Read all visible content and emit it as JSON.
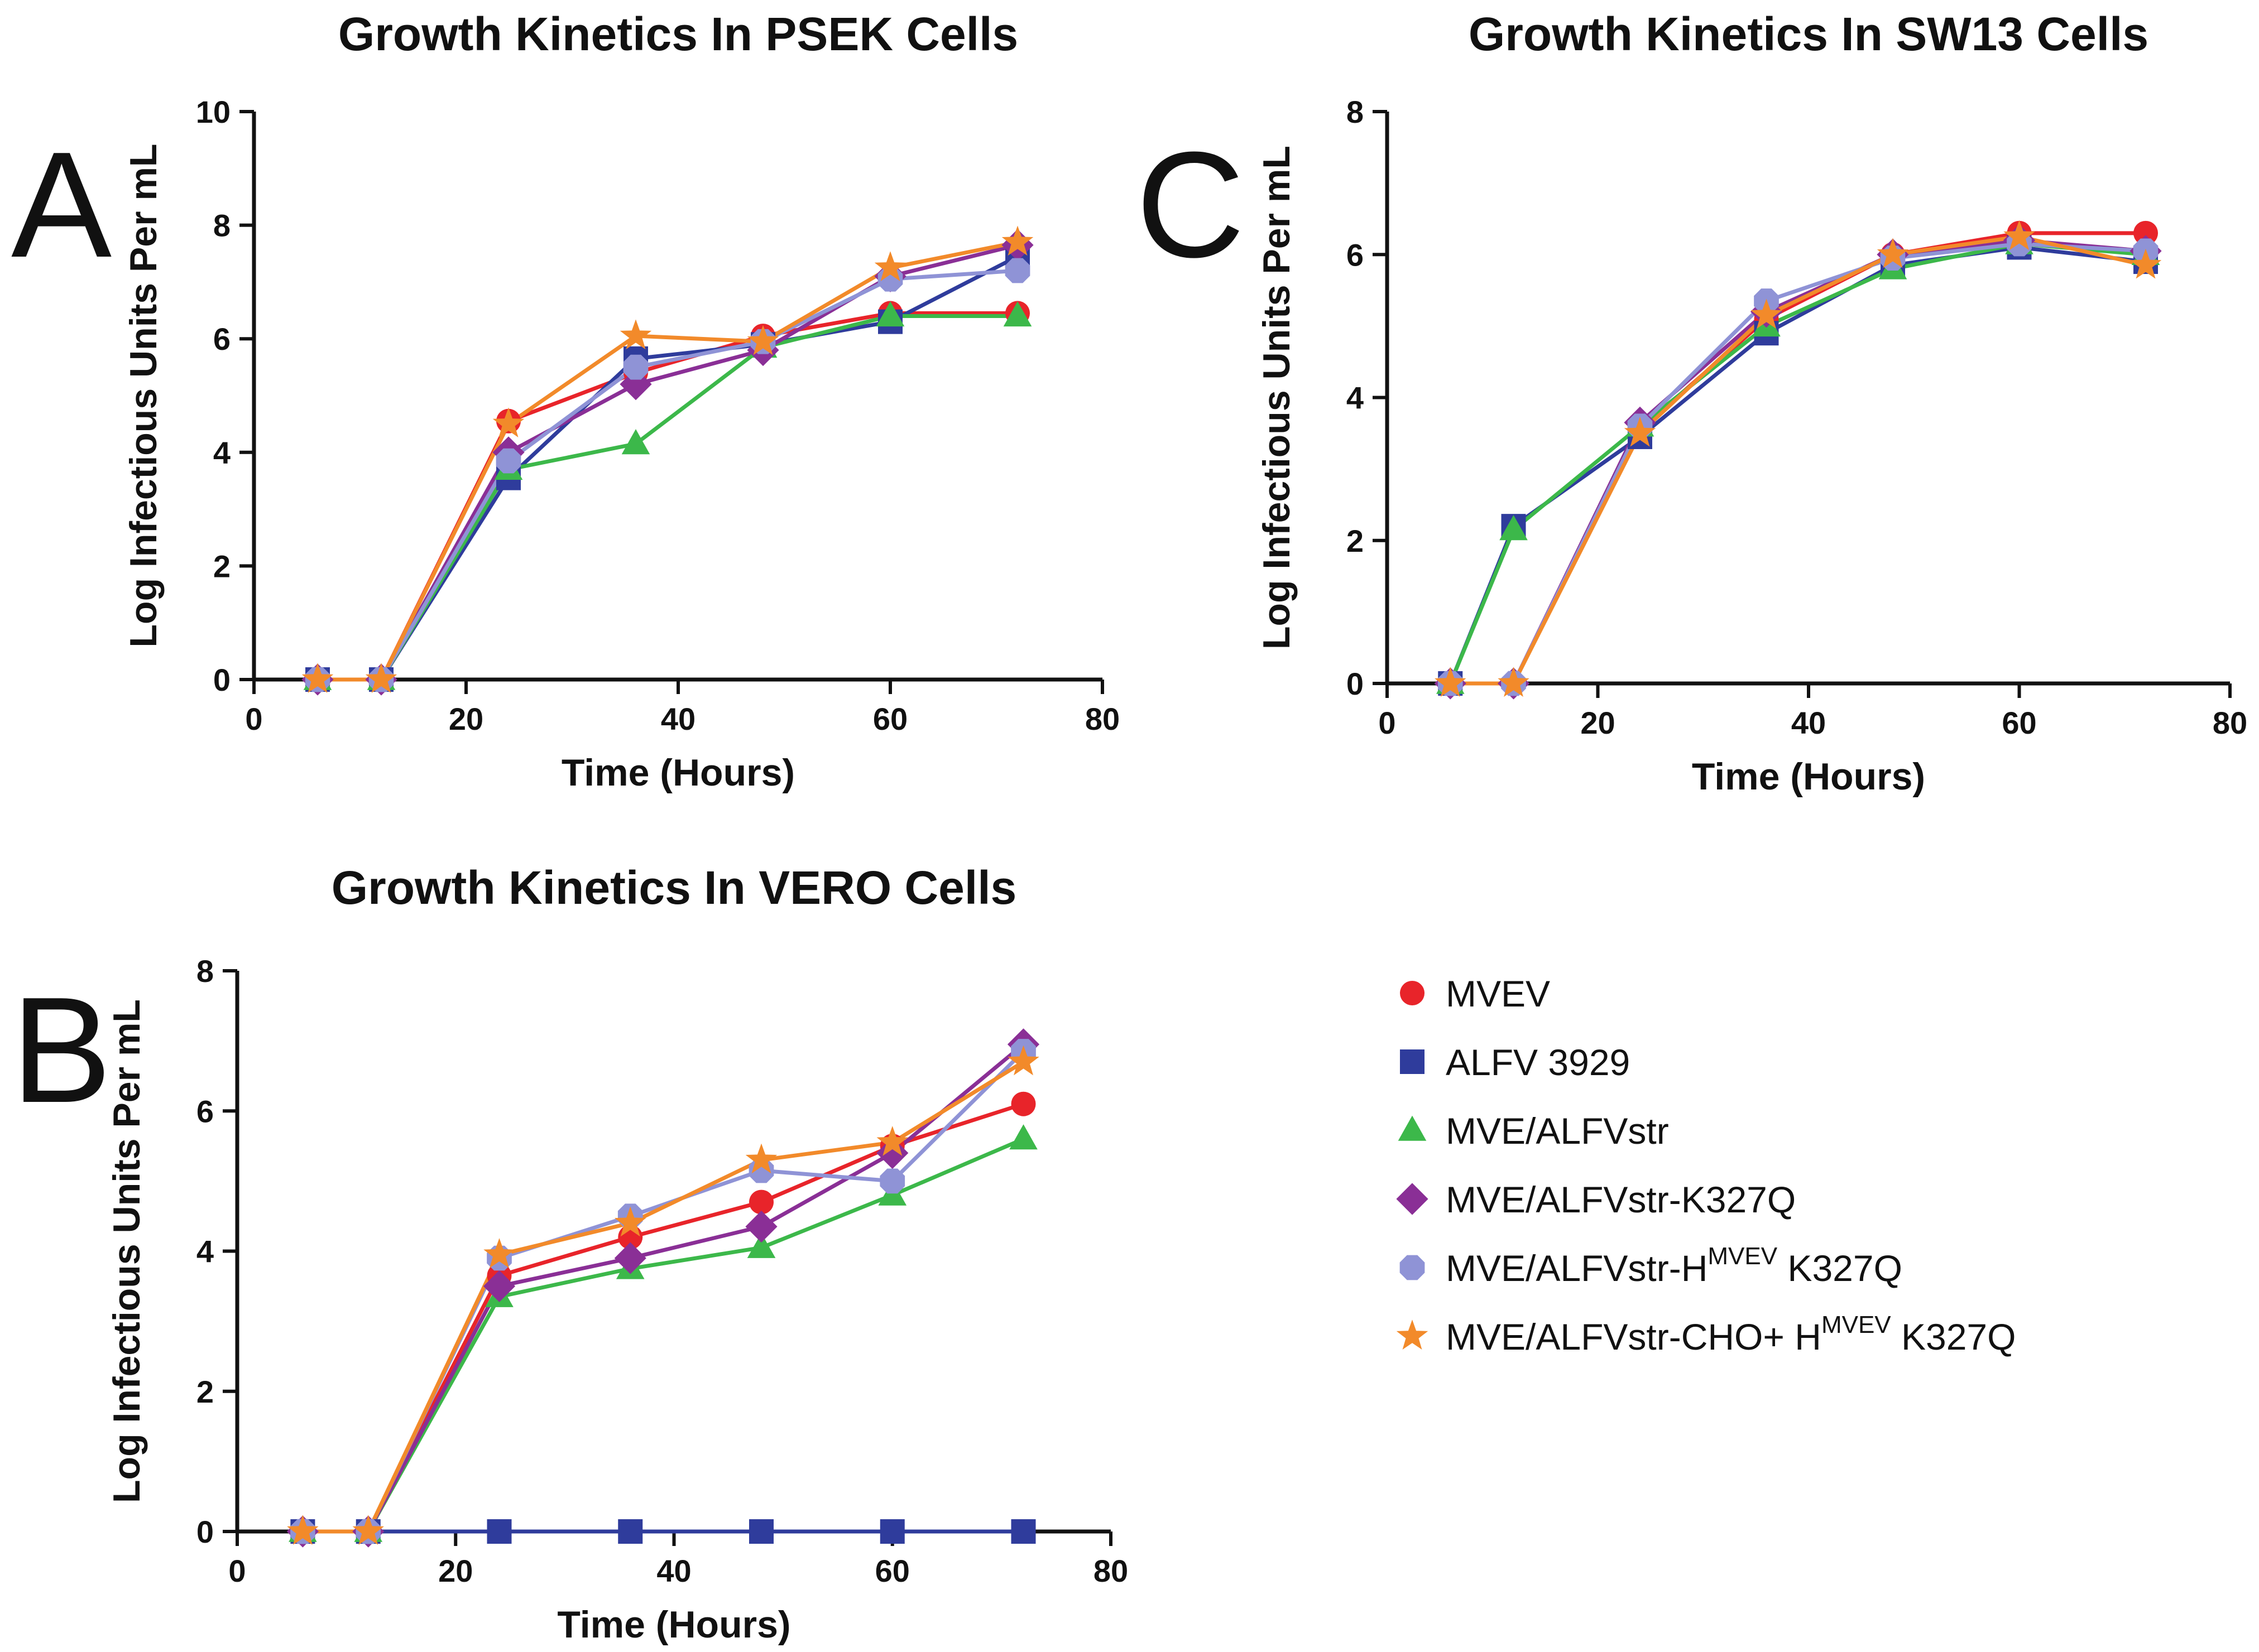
{
  "chart_data": [
    {
      "panel": "A",
      "type": "line",
      "title": "Growth  Kinetics In PSEK Cells",
      "xlabel": "Time (Hours)",
      "ylabel": "Log Infectious Units Per mL",
      "xlim": [
        0,
        80
      ],
      "ylim": [
        0,
        10
      ],
      "xticks": [
        0,
        20,
        40,
        60,
        80
      ],
      "yticks": [
        0,
        2,
        4,
        6,
        8,
        10
      ],
      "x": [
        6,
        12,
        24,
        36,
        48,
        60,
        72
      ],
      "series": [
        {
          "name": "MVEV",
          "values": [
            0,
            0,
            4.55,
            5.4,
            6.05,
            6.45,
            6.45
          ]
        },
        {
          "name": "ALFV 3929",
          "values": [
            0,
            0,
            3.55,
            5.65,
            5.9,
            6.3,
            7.45
          ]
        },
        {
          "name": "MVE/ALFVstr",
          "values": [
            0,
            0,
            3.7,
            4.15,
            5.85,
            6.4,
            6.4
          ]
        },
        {
          "name": "MVE/ALFVstr-K327Q",
          "values": [
            0,
            0,
            4.0,
            5.2,
            5.8,
            7.1,
            7.65
          ]
        },
        {
          "name": "MVE/ALFVstr-HMVEV K327Q",
          "values": [
            0,
            0,
            3.85,
            5.5,
            5.95,
            7.05,
            7.2
          ]
        },
        {
          "name": "MVE/ALFVstr-CHO+ HMVEV K327Q",
          "values": [
            0,
            0,
            4.5,
            6.05,
            5.95,
            7.25,
            7.7
          ]
        }
      ]
    },
    {
      "panel": "C",
      "type": "line",
      "title": "Growth Kinetics In SW13 Cells",
      "xlabel": "Time (Hours)",
      "ylabel": "Log Infectious Units Per mL",
      "xlim": [
        0,
        80
      ],
      "ylim": [
        0,
        8
      ],
      "xticks": [
        0,
        20,
        40,
        60,
        80
      ],
      "yticks": [
        0,
        2,
        4,
        6,
        8
      ],
      "x": [
        6,
        12,
        24,
        36,
        48,
        60,
        72
      ],
      "series": [
        {
          "name": "MVEV",
          "values": [
            0,
            0,
            3.55,
            5.1,
            6.0,
            6.3,
            6.3
          ]
        },
        {
          "name": "ALFV 3929",
          "values": [
            0,
            2.2,
            3.45,
            4.9,
            5.85,
            6.1,
            5.9
          ]
        },
        {
          "name": "MVE/ALFVstr",
          "values": [
            0,
            2.15,
            3.6,
            5.0,
            5.8,
            6.15,
            6.0
          ]
        },
        {
          "name": "MVE/ALFVstr-K327Q",
          "values": [
            0,
            0,
            3.65,
            5.2,
            6.0,
            6.2,
            6.05
          ]
        },
        {
          "name": "MVE/ALFVstr-HMVEV K327Q",
          "values": [
            0,
            0,
            3.6,
            5.35,
            5.95,
            6.15,
            6.05
          ]
        },
        {
          "name": "MVE/ALFVstr-CHO+ HMVEV K327Q",
          "values": [
            0,
            0,
            3.5,
            5.15,
            6.0,
            6.25,
            5.85
          ]
        }
      ]
    },
    {
      "panel": "B",
      "type": "line",
      "title": "Growth Kinetics In VERO Cells",
      "xlabel": "Time (Hours)",
      "ylabel": "Log Infectious Units Per mL",
      "xlim": [
        0,
        80
      ],
      "ylim": [
        0,
        8
      ],
      "xticks": [
        0,
        20,
        40,
        60,
        80
      ],
      "yticks": [
        0,
        2,
        4,
        6,
        8
      ],
      "x": [
        6,
        12,
        24,
        36,
        48,
        60,
        72
      ],
      "series": [
        {
          "name": "MVEV",
          "values": [
            0,
            0,
            3.65,
            4.2,
            4.7,
            5.5,
            6.1
          ]
        },
        {
          "name": "ALFV 3929",
          "values": [
            0,
            0,
            0,
            0,
            0,
            0,
            0
          ]
        },
        {
          "name": "MVE/ALFVstr",
          "values": [
            0,
            0,
            3.35,
            3.75,
            4.05,
            4.8,
            5.6
          ]
        },
        {
          "name": "MVE/ALFVstr-K327Q",
          "values": [
            0,
            0,
            3.5,
            3.9,
            4.35,
            5.4,
            6.95
          ]
        },
        {
          "name": "MVE/ALFVstr-HMVEV K327Q",
          "values": [
            0,
            0,
            3.9,
            4.5,
            5.15,
            5.0,
            6.85
          ]
        },
        {
          "name": "MVE/ALFVstr-CHO+ HMVEV K327Q",
          "values": [
            0,
            0,
            3.95,
            4.4,
            5.3,
            5.55,
            6.7
          ]
        }
      ]
    }
  ],
  "legend": {
    "entries": [
      {
        "base": "MVEV",
        "sup": "",
        "tail": ""
      },
      {
        "base": "ALFV 3929",
        "sup": "",
        "tail": ""
      },
      {
        "base": "MVE/ALFVstr",
        "sup": "",
        "tail": ""
      },
      {
        "base": "MVE/ALFVstr-K327Q",
        "sup": "",
        "tail": ""
      },
      {
        "base": "MVE/ALFVstr-H",
        "sup": "MVEV",
        "tail": " K327Q"
      },
      {
        "base": "MVE/ALFVstr-CHO+ H",
        "sup": "MVEV",
        "tail": " K327Q"
      }
    ]
  },
  "series_style": [
    {
      "color": "#e8242a",
      "marker": "circle"
    },
    {
      "color": "#2f3c9c",
      "marker": "square"
    },
    {
      "color": "#3cb84a",
      "marker": "triangle"
    },
    {
      "color": "#8a2f96",
      "marker": "diamond"
    },
    {
      "color": "#8f93d6",
      "marker": "hexagon"
    },
    {
      "color": "#f28a2a",
      "marker": "star"
    }
  ]
}
